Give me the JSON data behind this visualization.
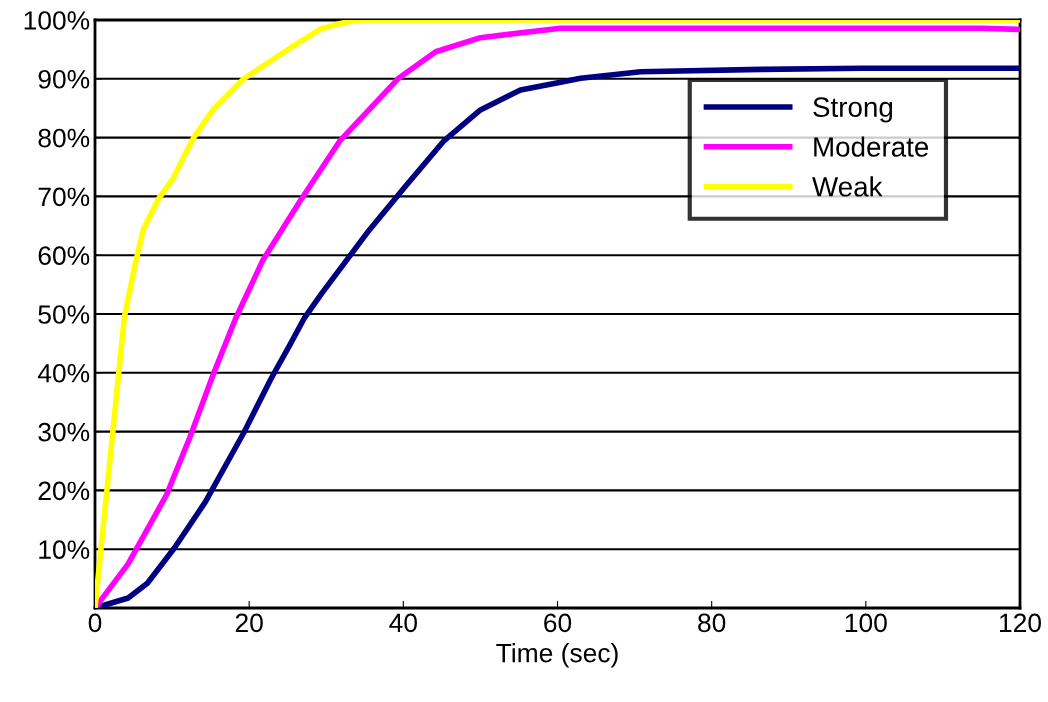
{
  "chart_data": {
    "type": "line",
    "xlabel": "Time (sec)",
    "xlim": [
      0,
      120
    ],
    "xticks": [
      0,
      20,
      40,
      60,
      80,
      100,
      120
    ],
    "ylim": [
      0,
      100
    ],
    "yticks": [
      {
        "value": 0,
        "label": null
      },
      {
        "value": 10,
        "label": "10%"
      },
      {
        "value": 20,
        "label": "20%"
      },
      {
        "value": 30,
        "label": "30%"
      },
      {
        "value": 40,
        "label": "40%"
      },
      {
        "value": 50,
        "label": "50%"
      },
      {
        "value": 60,
        "label": "60%"
      },
      {
        "value": 70,
        "label": "70%"
      },
      {
        "value": 80,
        "label": "80%"
      },
      {
        "value": 90,
        "label": "90%"
      },
      {
        "value": 100,
        "label": "100%"
      }
    ],
    "grid": "y",
    "legend": "right",
    "marker": "none",
    "line_style": "solid",
    "series": [
      {
        "name": "Strong",
        "color": "#000080",
        "x": [
          0,
          4.3,
          6.8,
          10.3,
          14.3,
          19.3,
          22.8,
          25.3,
          27.2,
          29.3,
          35.3,
          40.2,
          45.3,
          50,
          55.2,
          60.4,
          63,
          70.8,
          86.4,
          99.5,
          120
        ],
        "values": [
          0,
          1.7,
          4.2,
          10.2,
          18,
          29.8,
          38.9,
          44.8,
          49.4,
          53.3,
          63.8,
          71.6,
          79.5,
          84.7,
          88.1,
          89.4,
          90.1,
          91.2,
          91.6,
          91.8,
          91.8
        ]
      },
      {
        "name": "Moderate",
        "color": "#ff00ff",
        "x": [
          0,
          4.3,
          9.3,
          12.3,
          15.3,
          18.3,
          21.8,
          26.8,
          31.8,
          39.3,
          44.2,
          50,
          60.4,
          115,
          120
        ],
        "values": [
          0,
          7.5,
          19.3,
          29,
          39.6,
          49.4,
          59.2,
          69.6,
          79.5,
          90,
          94.6,
          97,
          98.6,
          98.6,
          98.4
        ]
      },
      {
        "name": "Weak",
        "color": "#ffff00",
        "x": [
          0,
          2.3,
          3.8,
          5.3,
          6.3,
          8.3,
          10.1,
          12.8,
          15.3,
          19.3,
          25.3,
          29.3,
          31.8,
          34,
          120
        ],
        "values": [
          0,
          29.8,
          49.4,
          59,
          64.5,
          69.7,
          73,
          80,
          84.7,
          90,
          95.2,
          98.5,
          99.4,
          100,
          100
        ]
      }
    ]
  }
}
